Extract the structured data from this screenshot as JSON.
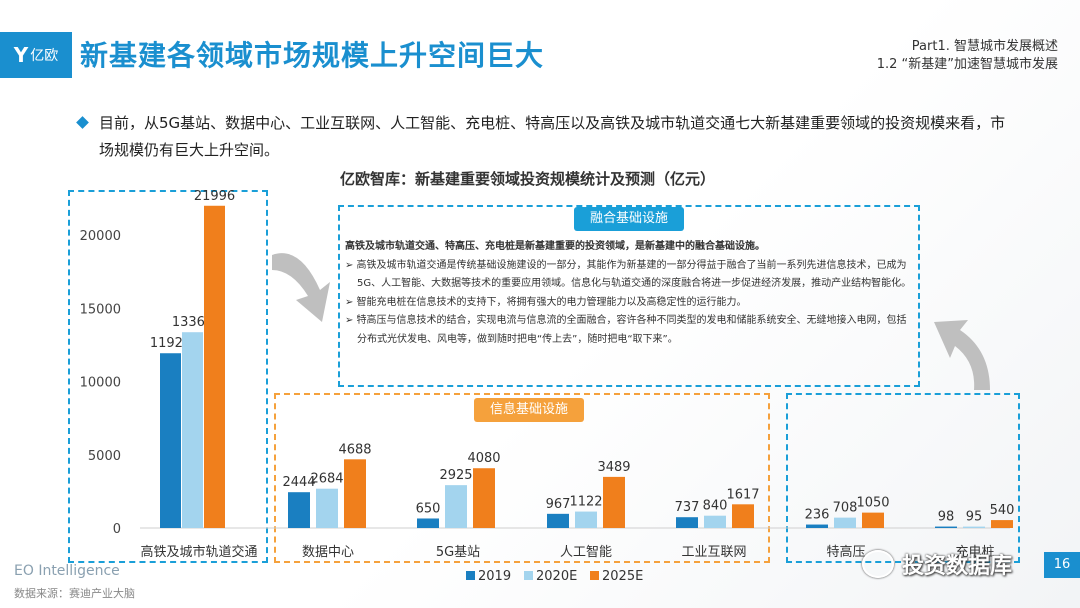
{
  "header": {
    "logo_text": "亿欧",
    "title": "新基建各领域市场规模上升空间巨大",
    "part_line1": "Part1. 智慧城市发展概述",
    "part_line2": "1.2 “新基建”加速智慧城市发展"
  },
  "bullet_text": "目前，从5G基站、数据中心、工业互联网、人工智能、充电桩、特高压以及高铁及城市轨道交通七大新基建重要领域的投资规模来看，市场规模仍有巨大上升空间。",
  "chart_title": "亿欧智库：新基建重要领域投资规模统计及预测（亿元）",
  "fusion_box": {
    "tag": "融合基础设施",
    "head": "高铁及城市轨道交通、特高压、充电桩是新基建重要的投资领域，是新基建中的融合基础设施。",
    "items": [
      "➢ 高铁及城市轨道交通是传统基础设施建设的一部分，其能作为新基建的一部分得益于融合了当前一系列先进信息技术，已成为5G、人工智能、大数据等技术的重要应用领域。信息化与轨道交通的深度融合将进一步促进经济发展，推动产业结构智能化。",
      "➢ 智能充电桩在信息技术的支持下，将拥有强大的电力管理能力以及高稳定性的运行能力。",
      "➢ 特高压与信息技术的结合，实现电流与信息流的全面融合，容许各种不同类型的发电和储能系统安全、无缝地接入电网，包括分布式光伏发电、风电等，做到随时把电“传上去”，随时把电“取下来”。"
    ]
  },
  "info_tag": "信息基础设施",
  "footer": {
    "brand": "EO Intelligence",
    "source": "数据来源：赛迪产业大脑",
    "page_number": "16",
    "watermark": "投资数据库"
  },
  "colors": {
    "accent": "#1a8fcf",
    "s2019": "#1a7fc1",
    "s2020": "#a3d4ee",
    "s2025": "#f07f1c",
    "dash_blue": "#1a9fd8",
    "dash_orange": "#f5a13c"
  },
  "chart_data": {
    "type": "bar",
    "ylim": [
      0,
      22000
    ],
    "yticks": [
      "0",
      "5000",
      "10000",
      "15000",
      "20000"
    ],
    "legend": [
      "2019",
      "2020E",
      "2025E"
    ],
    "legend_position": "bottom",
    "categories": [
      "高铁及城市轨道交通",
      "数据中心",
      "5G基站",
      "人工智能",
      "工业互联网",
      "特高压",
      "充电桩"
    ],
    "visible_category_labels": [
      "高铁及城市轨道交通",
      "数据中心",
      "5G基站",
      "人工智能",
      "工业互联网",
      "特高压",
      "充电桩"
    ],
    "series": [
      {
        "name": "2019",
        "values": [
          11929,
          2444,
          650,
          967,
          737,
          236,
          98
        ]
      },
      {
        "name": "2020E",
        "values": [
          13365,
          2684,
          2925,
          1122,
          840,
          708,
          95
        ]
      },
      {
        "name": "2025E",
        "values": [
          21996,
          4688,
          4080,
          3489,
          1617,
          1050,
          540
        ]
      }
    ]
  }
}
